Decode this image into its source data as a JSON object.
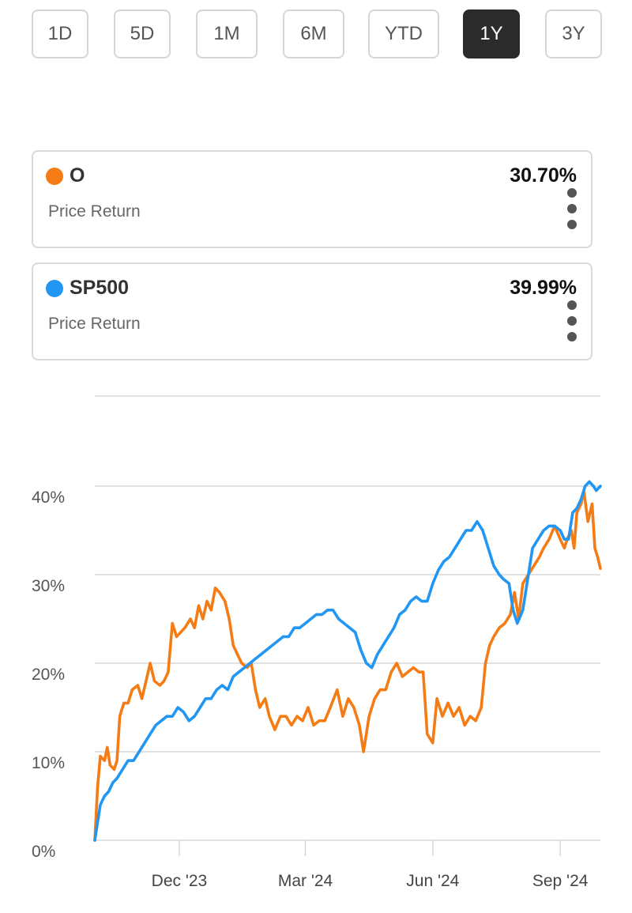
{
  "range_selector": {
    "options": [
      "1D",
      "5D",
      "1M",
      "6M",
      "YTD",
      "1Y",
      "3Y"
    ],
    "selected": "1Y"
  },
  "comparison": [
    {
      "symbol": "O",
      "metric": "Price Return",
      "value": "30.70%",
      "color": "#f57c14",
      "menu_icon": "more-vertical-icon"
    },
    {
      "symbol": "SP500",
      "metric": "Price Return",
      "value": "39.99%",
      "color": "#2196f3",
      "menu_icon": "more-vertical-icon"
    }
  ],
  "chart_data": {
    "type": "line",
    "ylim": [
      0,
      40
    ],
    "y_ticks": [
      0,
      10,
      20,
      30,
      40
    ],
    "y_tick_labels": [
      "0%",
      "10%",
      "20%",
      "30%",
      "40%"
    ],
    "x_range": [
      "2023-10-01",
      "2024-09-30"
    ],
    "x_ticks": [
      "2023-12-01",
      "2024-03-01",
      "2024-06-01",
      "2024-09-01"
    ],
    "x_tick_labels": [
      "Dec '23",
      "Mar '24",
      "Jun '24",
      "Sep '24"
    ],
    "grid": true,
    "series": [
      {
        "name": "O",
        "color": "#f57c14",
        "points": [
          [
            "2023-10-01",
            0
          ],
          [
            "2023-10-03",
            6
          ],
          [
            "2023-10-05",
            9.5
          ],
          [
            "2023-10-08",
            9
          ],
          [
            "2023-10-10",
            10.5
          ],
          [
            "2023-10-12",
            8.5
          ],
          [
            "2023-10-15",
            8
          ],
          [
            "2023-10-17",
            9
          ],
          [
            "2023-10-19",
            14
          ],
          [
            "2023-10-22",
            15.5
          ],
          [
            "2023-10-25",
            15.5
          ],
          [
            "2023-10-28",
            17
          ],
          [
            "2023-11-01",
            17.5
          ],
          [
            "2023-11-04",
            16
          ],
          [
            "2023-11-07",
            18
          ],
          [
            "2023-11-10",
            20
          ],
          [
            "2023-11-13",
            18
          ],
          [
            "2023-11-17",
            17.5
          ],
          [
            "2023-11-20",
            18
          ],
          [
            "2023-11-23",
            19
          ],
          [
            "2023-11-26",
            24.5
          ],
          [
            "2023-11-29",
            23
          ],
          [
            "2023-12-02",
            23.5
          ],
          [
            "2023-12-05",
            24
          ],
          [
            "2023-12-09",
            25
          ],
          [
            "2023-12-12",
            24
          ],
          [
            "2023-12-15",
            26.5
          ],
          [
            "2023-12-18",
            25
          ],
          [
            "2023-12-21",
            27
          ],
          [
            "2023-12-24",
            26
          ],
          [
            "2023-12-27",
            28.5
          ],
          [
            "2023-12-30",
            28
          ],
          [
            "2024-01-03",
            27
          ],
          [
            "2024-01-06",
            25
          ],
          [
            "2024-01-09",
            22
          ],
          [
            "2024-01-12",
            21
          ],
          [
            "2024-01-15",
            20
          ],
          [
            "2024-01-19",
            19.5
          ],
          [
            "2024-01-22",
            20
          ],
          [
            "2024-01-25",
            17
          ],
          [
            "2024-01-28",
            15
          ],
          [
            "2024-02-01",
            16
          ],
          [
            "2024-02-04",
            14
          ],
          [
            "2024-02-08",
            12.5
          ],
          [
            "2024-02-12",
            14
          ],
          [
            "2024-02-16",
            14
          ],
          [
            "2024-02-20",
            13
          ],
          [
            "2024-02-24",
            14
          ],
          [
            "2024-02-28",
            13.5
          ],
          [
            "2024-03-03",
            15
          ],
          [
            "2024-03-07",
            13
          ],
          [
            "2024-03-11",
            13.5
          ],
          [
            "2024-03-15",
            13.5
          ],
          [
            "2024-03-19",
            15
          ],
          [
            "2024-03-24",
            17
          ],
          [
            "2024-03-28",
            14
          ],
          [
            "2024-04-01",
            16
          ],
          [
            "2024-04-05",
            15
          ],
          [
            "2024-04-09",
            13
          ],
          [
            "2024-04-12",
            10
          ],
          [
            "2024-04-16",
            14
          ],
          [
            "2024-04-20",
            16
          ],
          [
            "2024-04-24",
            17
          ],
          [
            "2024-04-28",
            17
          ],
          [
            "2024-05-02",
            19
          ],
          [
            "2024-05-06",
            20
          ],
          [
            "2024-05-10",
            18.5
          ],
          [
            "2024-05-14",
            19
          ],
          [
            "2024-05-18",
            19.5
          ],
          [
            "2024-05-22",
            19
          ],
          [
            "2024-05-25",
            19
          ],
          [
            "2024-05-28",
            12
          ],
          [
            "2024-06-01",
            11
          ],
          [
            "2024-06-04",
            16
          ],
          [
            "2024-06-08",
            14
          ],
          [
            "2024-06-12",
            15.5
          ],
          [
            "2024-06-16",
            14
          ],
          [
            "2024-06-20",
            15
          ],
          [
            "2024-06-24",
            13
          ],
          [
            "2024-06-28",
            14
          ],
          [
            "2024-07-02",
            13.5
          ],
          [
            "2024-07-06",
            15
          ],
          [
            "2024-07-09",
            20
          ],
          [
            "2024-07-12",
            22
          ],
          [
            "2024-07-15",
            23
          ],
          [
            "2024-07-19",
            24
          ],
          [
            "2024-07-23",
            24.5
          ],
          [
            "2024-07-27",
            25.5
          ],
          [
            "2024-07-30",
            28
          ],
          [
            "2024-08-02",
            25
          ],
          [
            "2024-08-05",
            29
          ],
          [
            "2024-08-09",
            30
          ],
          [
            "2024-08-13",
            31
          ],
          [
            "2024-08-17",
            32
          ],
          [
            "2024-08-20",
            33
          ],
          [
            "2024-08-24",
            34
          ],
          [
            "2024-08-28",
            35.5
          ],
          [
            "2024-09-01",
            34
          ],
          [
            "2024-09-04",
            33
          ],
          [
            "2024-09-06",
            34
          ],
          [
            "2024-09-09",
            35
          ],
          [
            "2024-09-11",
            33
          ],
          [
            "2024-09-13",
            37
          ],
          [
            "2024-09-16",
            38
          ],
          [
            "2024-09-18",
            39.5
          ],
          [
            "2024-09-21",
            36
          ],
          [
            "2024-09-24",
            38
          ],
          [
            "2024-09-26",
            33
          ],
          [
            "2024-09-28",
            32
          ],
          [
            "2024-09-30",
            30.7
          ]
        ]
      },
      {
        "name": "SP500",
        "color": "#2196f3",
        "points": [
          [
            "2023-10-01",
            0
          ],
          [
            "2023-10-03",
            2
          ],
          [
            "2023-10-05",
            4
          ],
          [
            "2023-10-08",
            5
          ],
          [
            "2023-10-11",
            5.5
          ],
          [
            "2023-10-14",
            6.5
          ],
          [
            "2023-10-17",
            7
          ],
          [
            "2023-10-21",
            8
          ],
          [
            "2023-10-25",
            9
          ],
          [
            "2023-10-29",
            9
          ],
          [
            "2023-11-02",
            10
          ],
          [
            "2023-11-06",
            11
          ],
          [
            "2023-11-10",
            12
          ],
          [
            "2023-11-14",
            13
          ],
          [
            "2023-11-18",
            13.5
          ],
          [
            "2023-11-22",
            14
          ],
          [
            "2023-11-26",
            14
          ],
          [
            "2023-11-30",
            15
          ],
          [
            "2023-12-04",
            14.5
          ],
          [
            "2023-12-08",
            13.5
          ],
          [
            "2023-12-12",
            14
          ],
          [
            "2023-12-16",
            15
          ],
          [
            "2023-12-20",
            16
          ],
          [
            "2023-12-24",
            16
          ],
          [
            "2023-12-28",
            17
          ],
          [
            "2024-01-01",
            17.5
          ],
          [
            "2024-01-05",
            17
          ],
          [
            "2024-01-09",
            18.5
          ],
          [
            "2024-01-13",
            19
          ],
          [
            "2024-01-17",
            19.5
          ],
          [
            "2024-01-21",
            20
          ],
          [
            "2024-01-25",
            20.5
          ],
          [
            "2024-01-29",
            21
          ],
          [
            "2024-02-02",
            21.5
          ],
          [
            "2024-02-06",
            22
          ],
          [
            "2024-02-10",
            22.5
          ],
          [
            "2024-02-14",
            23
          ],
          [
            "2024-02-18",
            23
          ],
          [
            "2024-02-22",
            24
          ],
          [
            "2024-02-26",
            24
          ],
          [
            "2024-03-01",
            24.5
          ],
          [
            "2024-03-05",
            25
          ],
          [
            "2024-03-09",
            25.5
          ],
          [
            "2024-03-13",
            25.5
          ],
          [
            "2024-03-17",
            26
          ],
          [
            "2024-03-21",
            26
          ],
          [
            "2024-03-25",
            25
          ],
          [
            "2024-03-29",
            24.5
          ],
          [
            "2024-04-02",
            24
          ],
          [
            "2024-04-06",
            23.5
          ],
          [
            "2024-04-10",
            21.5
          ],
          [
            "2024-04-14",
            20
          ],
          [
            "2024-04-18",
            19.5
          ],
          [
            "2024-04-22",
            21
          ],
          [
            "2024-04-26",
            22
          ],
          [
            "2024-04-30",
            23
          ],
          [
            "2024-05-04",
            24
          ],
          [
            "2024-05-08",
            25.5
          ],
          [
            "2024-05-12",
            26
          ],
          [
            "2024-05-16",
            27
          ],
          [
            "2024-05-20",
            27.5
          ],
          [
            "2024-05-24",
            27
          ],
          [
            "2024-05-28",
            27
          ],
          [
            "2024-06-01",
            29
          ],
          [
            "2024-06-05",
            30.5
          ],
          [
            "2024-06-09",
            31.5
          ],
          [
            "2024-06-13",
            32
          ],
          [
            "2024-06-17",
            33
          ],
          [
            "2024-06-21",
            34
          ],
          [
            "2024-06-25",
            35
          ],
          [
            "2024-06-29",
            35
          ],
          [
            "2024-07-03",
            36
          ],
          [
            "2024-07-07",
            35
          ],
          [
            "2024-07-11",
            33
          ],
          [
            "2024-07-15",
            31
          ],
          [
            "2024-07-19",
            30
          ],
          [
            "2024-07-22",
            29.5
          ],
          [
            "2024-07-26",
            29
          ],
          [
            "2024-07-29",
            26
          ],
          [
            "2024-08-01",
            24.5
          ],
          [
            "2024-08-05",
            26
          ],
          [
            "2024-08-08",
            29
          ],
          [
            "2024-08-12",
            33
          ],
          [
            "2024-08-16",
            34
          ],
          [
            "2024-08-20",
            35
          ],
          [
            "2024-08-24",
            35.5
          ],
          [
            "2024-08-28",
            35.5
          ],
          [
            "2024-09-01",
            35
          ],
          [
            "2024-09-04",
            34
          ],
          [
            "2024-09-07",
            34
          ],
          [
            "2024-09-10",
            37
          ],
          [
            "2024-09-13",
            37.5
          ],
          [
            "2024-09-16",
            38.5
          ],
          [
            "2024-09-19",
            40
          ],
          [
            "2024-09-22",
            40.5
          ],
          [
            "2024-09-25",
            40
          ],
          [
            "2024-09-27",
            39.5
          ],
          [
            "2024-09-30",
            40
          ]
        ]
      }
    ]
  }
}
